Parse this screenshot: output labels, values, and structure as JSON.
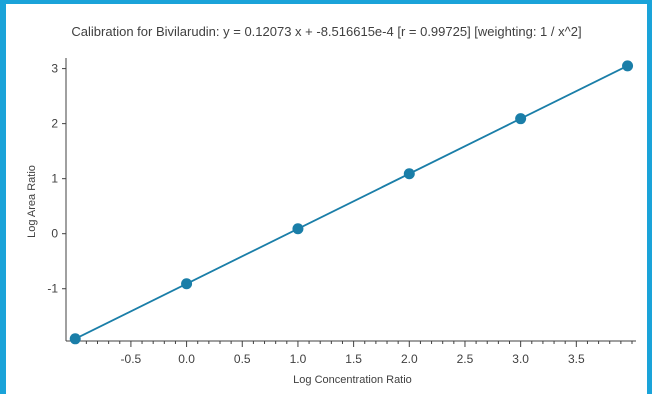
{
  "chart_data": {
    "type": "scatter",
    "title": "Calibration for Bivilarudin: y = 0.12073 x + -8.516615e-4 [r = 0.99725]  [weighting: 1 / x^2]",
    "xlabel": "Log Concentration Ratio",
    "ylabel": "Log Area Ratio",
    "xlim": [
      -1.02,
      4.0
    ],
    "ylim": [
      -1.95,
      3.12
    ],
    "x_ticks": [
      -0.5,
      0.0,
      0.5,
      1.0,
      1.5,
      2.0,
      2.5,
      3.0,
      3.5
    ],
    "x_tick_labels": [
      "-0.5",
      "0.0",
      "0.5",
      "1.0",
      "1.5",
      "2.0",
      "2.5",
      "3.0",
      "3.5"
    ],
    "y_ticks": [
      -1,
      0,
      1,
      2,
      3
    ],
    "y_tick_labels": [
      "-1",
      "0",
      "1",
      "2",
      "3"
    ],
    "grid": false,
    "points": [
      {
        "x": -1.0,
        "y": -1.91
      },
      {
        "x": 0.0,
        "y": -0.91
      },
      {
        "x": 1.0,
        "y": 0.09
      },
      {
        "x": 2.0,
        "y": 1.09
      },
      {
        "x": 3.0,
        "y": 2.09
      },
      {
        "x": 3.96,
        "y": 3.05
      }
    ],
    "fit_line": {
      "x": [
        -1.0,
        3.96
      ],
      "y": [
        -1.91,
        3.05
      ]
    },
    "colors": {
      "series": "#1a7ea8",
      "axis": "#404040",
      "frame": "#1aa3d9"
    }
  }
}
